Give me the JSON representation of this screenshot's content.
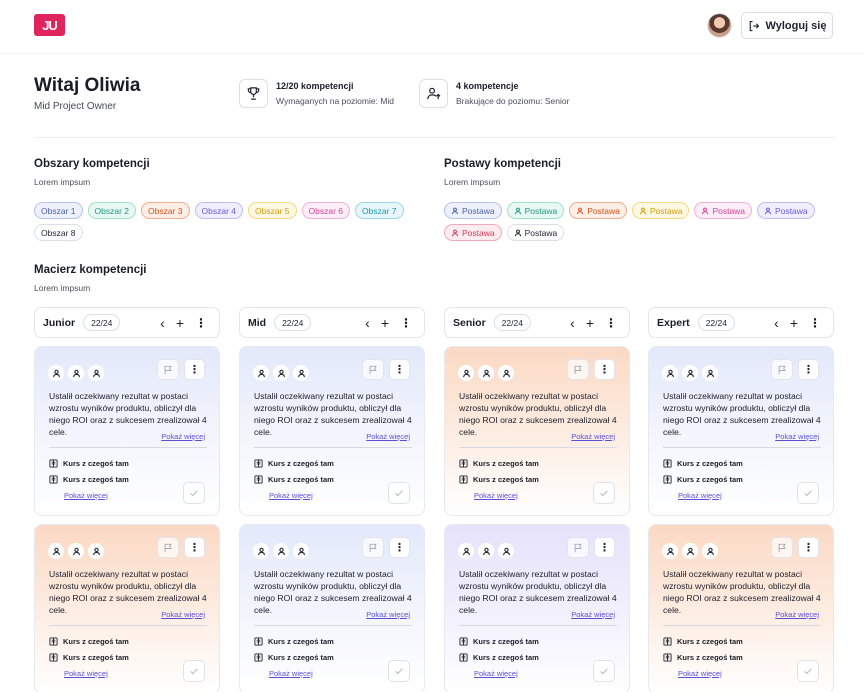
{
  "header": {
    "logo_text": "JU",
    "logout_label": "Wyloguj się"
  },
  "welcome": {
    "title": "Witaj Oliwia",
    "role": "Mid Project Owner"
  },
  "stats": [
    {
      "icon": "trophy-icon",
      "title": "12/20 kompetencji",
      "desc": "Wymaganych na poziomie: Mid"
    },
    {
      "icon": "user-up-icon",
      "title": "4 kompetencje",
      "desc": "Brakujące do poziomu: Senior"
    }
  ],
  "areas": {
    "title": "Obszary kompetencji",
    "subtitle": "Lorem impsum",
    "chips": [
      {
        "label": "Obszar 1",
        "color": "#4b5fa8",
        "bg": "#eef1fb",
        "border": "#b9c3e6"
      },
      {
        "label": "Obszar 2",
        "color": "#1f9a76",
        "bg": "#e8f8f2",
        "border": "#9fe0c9"
      },
      {
        "label": "Obszar 3",
        "color": "#d2541a",
        "bg": "#fdefe7",
        "border": "#f2ad8a"
      },
      {
        "label": "Obszar 4",
        "color": "#6a5bd6",
        "bg": "#f0eefd",
        "border": "#c3bcf3"
      },
      {
        "label": "Obszar 5",
        "color": "#d3a00b",
        "bg": "#fef8e3",
        "border": "#f3da86"
      },
      {
        "label": "Obszar 6",
        "color": "#d2409a",
        "bg": "#fdeef7",
        "border": "#f1b0d6"
      },
      {
        "label": "Obszar 7",
        "color": "#1b98b3",
        "bg": "#e8f7fb",
        "border": "#97d9e8"
      },
      {
        "label": "Obszar 8",
        "color": "#1f2330",
        "bg": "#ffffff",
        "border": "#dcdfe6"
      }
    ]
  },
  "attitudes": {
    "title": "Postawy kompetencji",
    "subtitle": "Lorem impsum",
    "chips": [
      {
        "label": "Postawa",
        "color": "#4b5fa8",
        "bg": "#eef1fb",
        "border": "#b9c3e6"
      },
      {
        "label": "Postawa",
        "color": "#1f9a76",
        "bg": "#e8f8f2",
        "border": "#9fe0c9"
      },
      {
        "label": "Postawa",
        "color": "#d2541a",
        "bg": "#fdefe7",
        "border": "#f2ad8a"
      },
      {
        "label": "Postawa",
        "color": "#d3a00b",
        "bg": "#fef8e3",
        "border": "#f3da86"
      },
      {
        "label": "Postawa",
        "color": "#d2409a",
        "bg": "#fdeef7",
        "border": "#f1b0d6"
      },
      {
        "label": "Postawa",
        "color": "#6a5bd6",
        "bg": "#f0eefd",
        "border": "#c3bcf3"
      },
      {
        "label": "Postawa",
        "color": "#d03a55",
        "bg": "#fdedf0",
        "border": "#f1a9b7"
      },
      {
        "label": "Postawa",
        "color": "#1f2330",
        "bg": "#ffffff",
        "border": "#dcdfe6"
      }
    ]
  },
  "matrix": {
    "title": "Macierz kompetencji",
    "subtitle": "Lorem impsum",
    "columns": [
      {
        "name": "Junior",
        "count": "22/24",
        "cards": [
          "blue",
          "orange"
        ]
      },
      {
        "name": "Mid",
        "count": "22/24",
        "cards": [
          "blue",
          "blue"
        ]
      },
      {
        "name": "Senior",
        "count": "22/24",
        "cards": [
          "orange",
          "purple"
        ]
      },
      {
        "name": "Expert",
        "count": "22/24",
        "cards": [
          "blue",
          "orange"
        ]
      }
    ],
    "card_text": "Ustalił oczekiwany rezultat w postaci wzrostu wyników produktu, obliczył dla niego ROI oraz z sukcesem zrealizował 4 cele.",
    "show_more": "Pokaż więcej",
    "course_label": "Kurs z czegoś tam"
  }
}
